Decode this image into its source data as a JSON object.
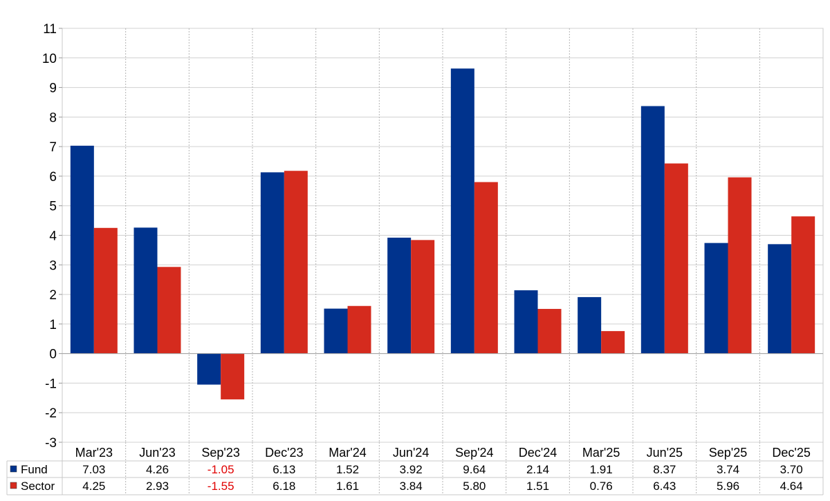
{
  "chart_data": {
    "type": "bar",
    "categories": [
      "Mar'23",
      "Jun'23",
      "Sep'23",
      "Dec'23",
      "Mar'24",
      "Jun'24",
      "Sep'24",
      "Dec'24",
      "Mar'25",
      "Jun'25",
      "Sep'25",
      "Dec'25"
    ],
    "series": [
      {
        "name": "Fund",
        "color": "#00338d",
        "values": [
          7.03,
          4.26,
          -1.05,
          6.13,
          1.52,
          3.92,
          9.64,
          2.14,
          1.91,
          8.37,
          3.74,
          3.7
        ],
        "labels": [
          "7.03",
          "4.26",
          "-1.05",
          "6.13",
          "1.52",
          "3.92",
          "9.64",
          "2.14",
          "1.91",
          "8.37",
          "3.74",
          "3.70"
        ]
      },
      {
        "name": "Sector",
        "color": "#d52b1e",
        "values": [
          4.25,
          2.93,
          -1.55,
          6.18,
          1.61,
          3.84,
          5.8,
          1.51,
          0.76,
          6.43,
          5.96,
          4.64
        ],
        "labels": [
          "4.25",
          "2.93",
          "-1.55",
          "6.18",
          "1.61",
          "3.84",
          "5.80",
          "1.51",
          "0.76",
          "6.43",
          "5.96",
          "4.64"
        ]
      }
    ],
    "ylim": [
      -3,
      11
    ],
    "yticks": [
      "-3",
      "-2",
      "-1",
      "0",
      "1",
      "2",
      "3",
      "4",
      "5",
      "6",
      "7",
      "8",
      "9",
      "10",
      "11"
    ],
    "grid": true,
    "legend": "data-table-below",
    "negative_label_color": "#e00000"
  }
}
